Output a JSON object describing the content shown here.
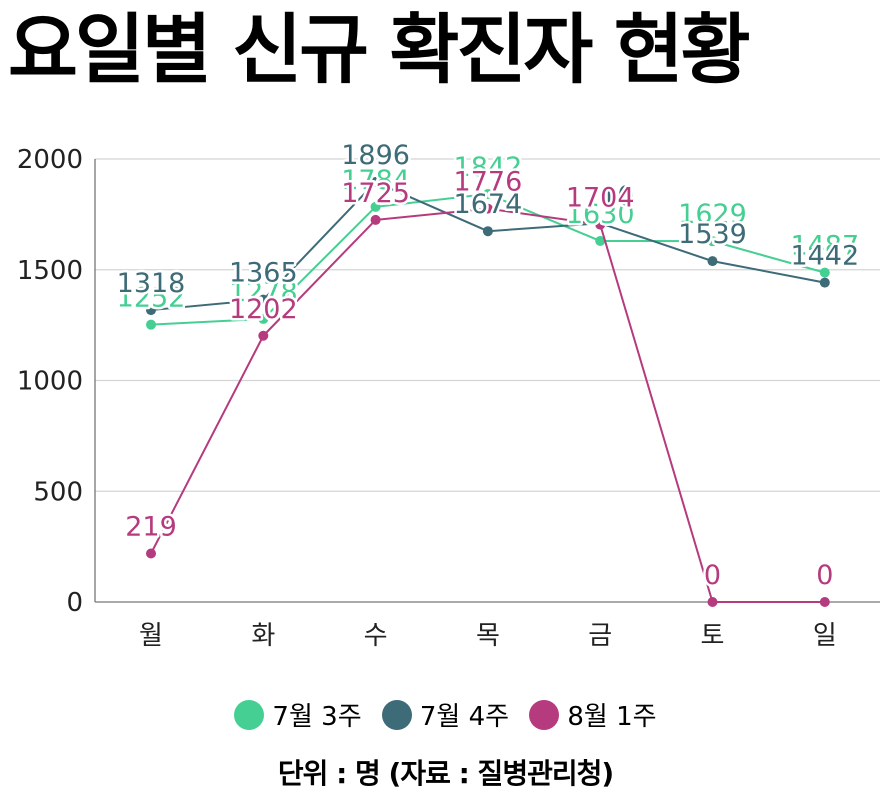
{
  "chart_data": {
    "type": "line",
    "title": "요일별 신규 확진자 현황",
    "categories": [
      "월",
      "화",
      "수",
      "목",
      "금",
      "토",
      "일"
    ],
    "series": [
      {
        "name": "7월 3주",
        "color": "#45cf93",
        "values": [
          1252,
          1278,
          1784,
          1842,
          1630,
          1629,
          1487
        ]
      },
      {
        "name": "7월 4주",
        "color": "#3d6b77",
        "values": [
          1318,
          1365,
          1896,
          1674,
          1710,
          1539,
          1442
        ]
      },
      {
        "name": "8월 1주",
        "color": "#b53a7e",
        "values": [
          219,
          1202,
          1725,
          1776,
          1704,
          0,
          0
        ]
      }
    ],
    "y_ticks": [
      "0",
      "500",
      "1000",
      "1500",
      "2000"
    ],
    "ylim": [
      0,
      2000
    ],
    "grid": true,
    "legend_position": "bottom",
    "source": "단위 : 명 (자료 : 질병관리청)"
  }
}
